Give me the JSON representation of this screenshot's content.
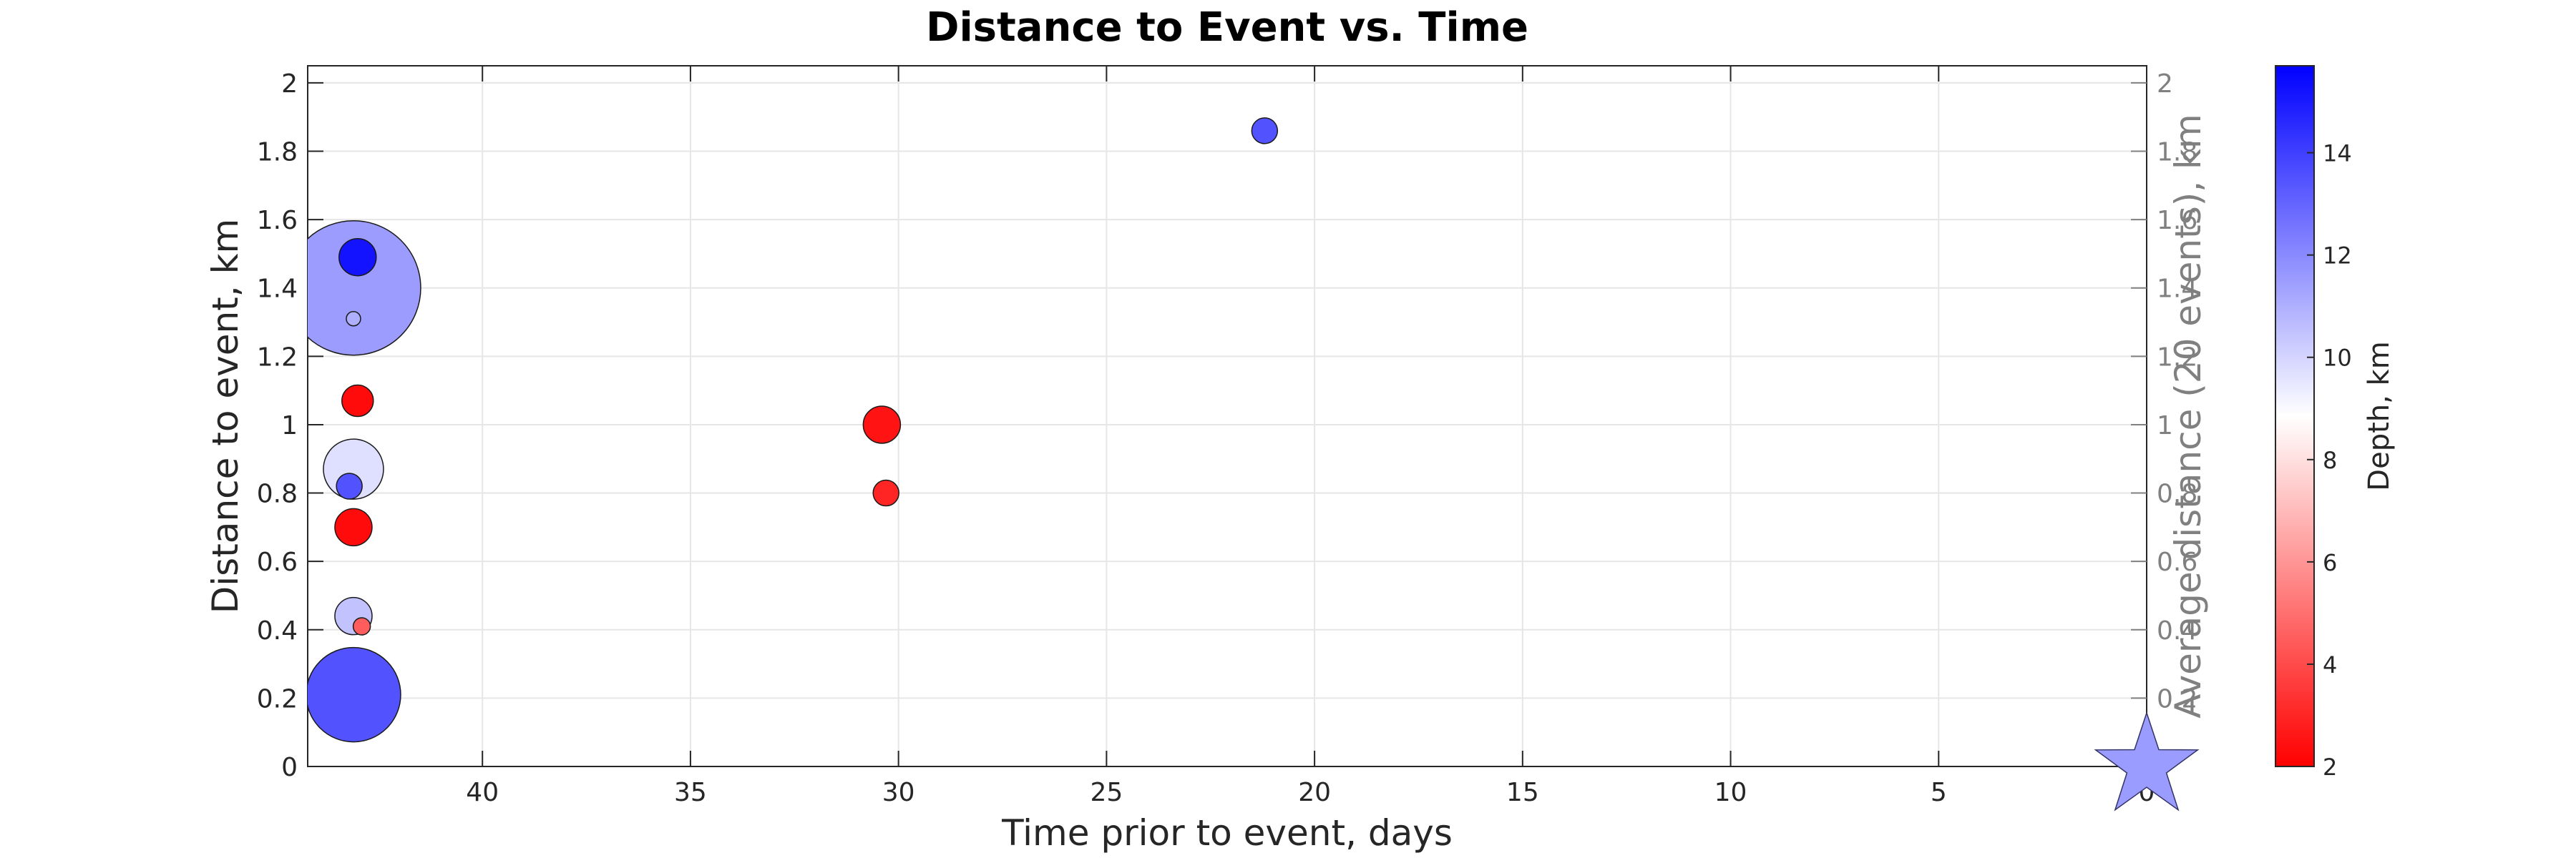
{
  "chart_data": {
    "type": "scatter",
    "title": "Distance to Event vs. Time",
    "xlabel": "Time prior to event, days",
    "ylabel": "Distance to event, km",
    "y2label": "Average distance (20 events), km",
    "colorbar_label": "Depth, km",
    "x_reversed": true,
    "xlim": [
      44.2,
      0
    ],
    "ylim": [
      0,
      2.05
    ],
    "x_ticks": [
      40,
      35,
      30,
      25,
      20,
      15,
      10,
      5,
      0
    ],
    "y_ticks": [
      0,
      0.2,
      0.4,
      0.6,
      0.8,
      1,
      1.2,
      1.4,
      1.6,
      1.8,
      2
    ],
    "y2_ticks": [
      0.2,
      0.4,
      0.6,
      0.8,
      1,
      1.2,
      1.4,
      1.6,
      1.8,
      2
    ],
    "colorbar": {
      "range": [
        2,
        15.7
      ],
      "ticks": [
        2,
        4,
        6,
        8,
        10,
        12,
        14
      ],
      "colors": [
        "#ff0000",
        "#ffffff",
        "#0000ff"
      ]
    },
    "grid": true,
    "points": [
      {
        "x": 43.0,
        "y": 1.49,
        "depth": 15.2,
        "size": 5
      },
      {
        "x": 43.1,
        "y": 1.4,
        "depth": 11.5,
        "size": 22
      },
      {
        "x": 43.1,
        "y": 1.31,
        "depth": 11.0,
        "size": 1
      },
      {
        "x": 43.0,
        "y": 1.07,
        "depth": 2.3,
        "size": 4
      },
      {
        "x": 43.2,
        "y": 0.82,
        "depth": 13.5,
        "size": 3
      },
      {
        "x": 43.1,
        "y": 0.87,
        "depth": 9.7,
        "size": 9
      },
      {
        "x": 43.1,
        "y": 0.7,
        "depth": 2.3,
        "size": 5
      },
      {
        "x": 43.1,
        "y": 0.44,
        "depth": 10.5,
        "size": 5
      },
      {
        "x": 42.9,
        "y": 0.41,
        "depth": 4.5,
        "size": 1.5
      },
      {
        "x": 43.1,
        "y": 0.21,
        "depth": 13.5,
        "size": 15
      },
      {
        "x": 30.4,
        "y": 1.0,
        "depth": 2.5,
        "size": 5
      },
      {
        "x": 30.3,
        "y": 0.8,
        "depth": 3.0,
        "size": 3
      },
      {
        "x": 21.2,
        "y": 1.86,
        "depth": 13.5,
        "size": 3
      }
    ],
    "event": {
      "x": 0,
      "y": 0,
      "marker": "star",
      "color": "#9a9cff"
    }
  }
}
